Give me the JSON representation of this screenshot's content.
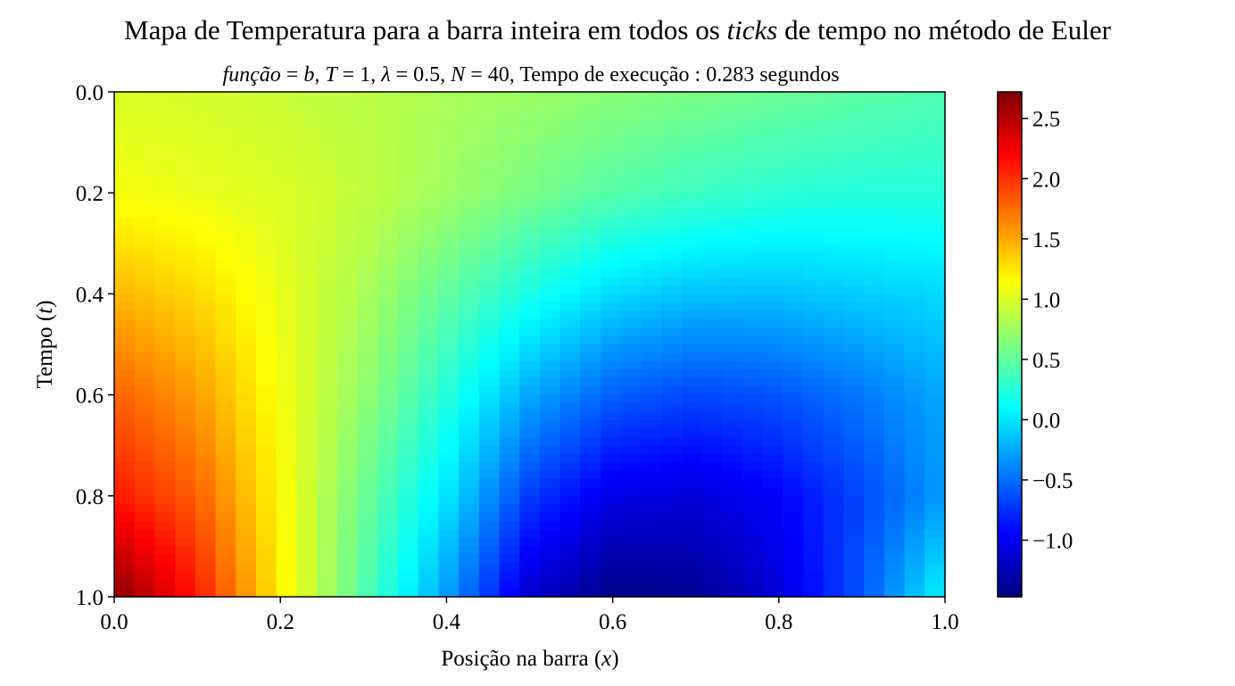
{
  "figure": {
    "title_plain": "Mapa de Temperatura para a barra inteira em todos os ",
    "title_math": "ticks",
    "title_tail": " de tempo no método de Euler"
  },
  "subtitle": {
    "fn_label": "função",
    "fn_value": "b",
    "T_label": "T",
    "T_value": "1",
    "lambda_label": "λ",
    "lambda_value": "0.5",
    "N_label": "N",
    "N_value": "40",
    "time_label": "Tempo de execução",
    "time_value": "0.283",
    "time_unit": "segundos"
  },
  "colormap": "jet",
  "chart_data": {
    "type": "heatmap",
    "xlabel_text": "Posição na barra (",
    "xlabel_var": "x",
    "xlabel_close": ")",
    "ylabel_text": "Tempo (",
    "ylabel_var": "t",
    "ylabel_close": ")",
    "xlim": [
      0.0,
      1.0
    ],
    "ylim": [
      0.0,
      1.0
    ],
    "y_inverted": true,
    "xticks": [
      "0.0",
      "0.2",
      "0.4",
      "0.6",
      "0.8",
      "1.0"
    ],
    "yticks": [
      "0.0",
      "0.2",
      "0.4",
      "0.6",
      "0.8",
      "1.0"
    ],
    "columns": 41,
    "value_range": [
      -1.47,
      2.72
    ],
    "colorbar_ticks": [
      "2.5",
      "2.0",
      "1.5",
      "1.0",
      "0.5",
      "0.0",
      "−0.5",
      "−1.0"
    ],
    "colorbar_tick_values": [
      2.5,
      2.0,
      1.5,
      1.0,
      0.5,
      0.0,
      -0.5,
      -1.0
    ],
    "field_samples": {
      "t": [
        0.0,
        0.2,
        0.4,
        0.6,
        0.8,
        1.0
      ],
      "x": [
        0.0,
        0.1,
        0.2,
        0.3,
        0.4,
        0.5,
        0.6,
        0.7,
        0.8,
        0.9,
        1.0
      ],
      "values": [
        [
          1.0,
          0.97,
          0.92,
          0.87,
          0.8,
          0.74,
          0.67,
          0.6,
          0.54,
          0.48,
          0.42
        ],
        [
          1.1,
          1.06,
          1.0,
          0.9,
          0.75,
          0.6,
          0.45,
          0.35,
          0.28,
          0.25,
          0.25
        ],
        [
          1.45,
          1.3,
          1.05,
          0.8,
          0.5,
          0.2,
          -0.05,
          -0.15,
          -0.15,
          -0.1,
          -0.05
        ],
        [
          1.8,
          1.55,
          1.1,
          0.7,
          0.25,
          -0.25,
          -0.55,
          -0.65,
          -0.6,
          -0.45,
          -0.25
        ],
        [
          2.1,
          1.8,
          1.15,
          0.55,
          0.0,
          -0.7,
          -1.05,
          -1.1,
          -0.95,
          -0.65,
          -0.3
        ],
        [
          2.7,
          2.1,
          1.2,
          0.45,
          -0.3,
          -1.15,
          -1.45,
          -1.4,
          -1.1,
          -0.6,
          0.1
        ]
      ]
    }
  }
}
